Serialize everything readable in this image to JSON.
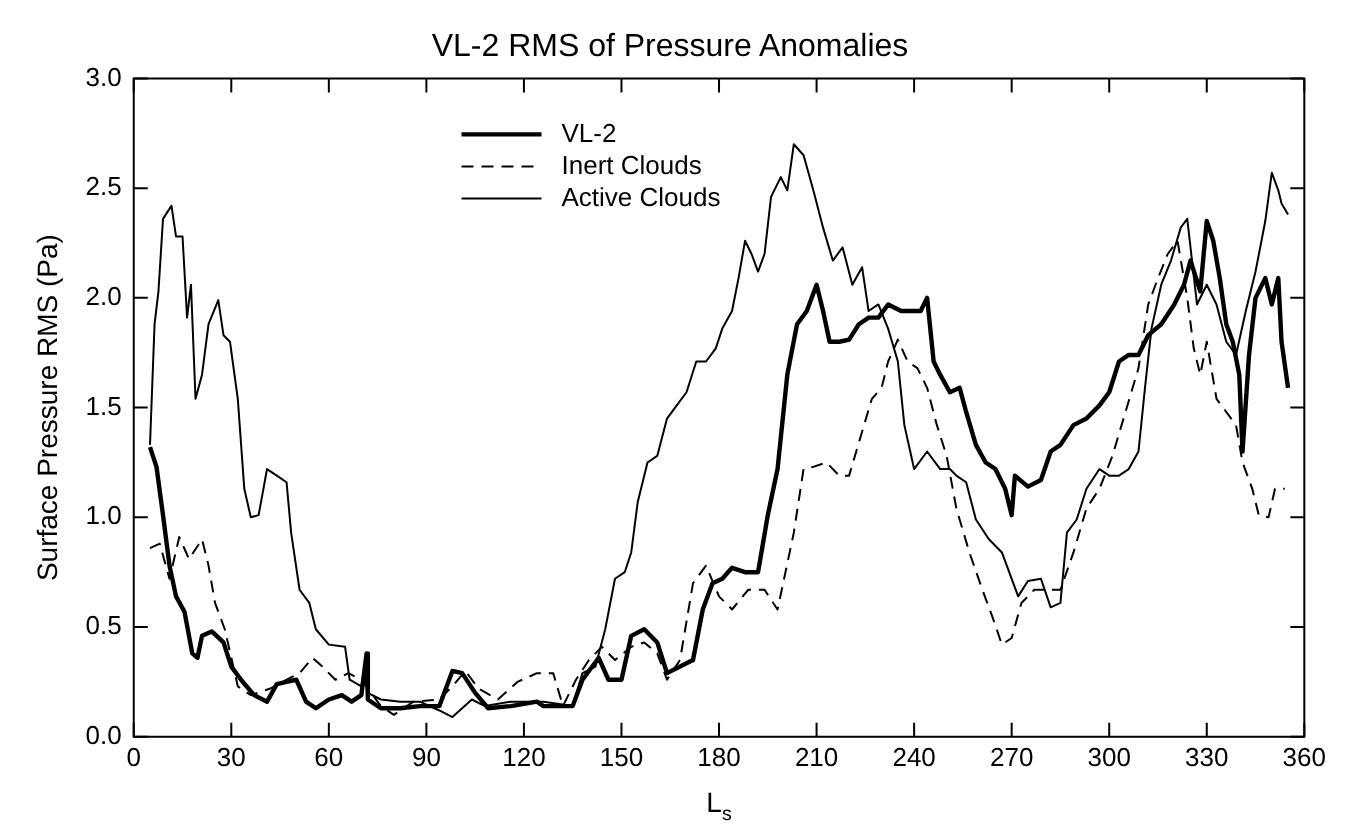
{
  "chart_data": {
    "type": "line",
    "title": "VL-2 RMS of Pressure Anomalies",
    "xlabel": "L$_{s}$",
    "ylabel": "Surface Pressure RMS (Pa)",
    "xlim": [
      0,
      360
    ],
    "xticks": [
      0,
      30,
      60,
      90,
      120,
      150,
      180,
      210,
      240,
      270,
      300,
      330,
      360
    ],
    "ylim": [
      0,
      3
    ],
    "yticks": [
      {
        "value": 0,
        "label": "0.0"
      },
      {
        "value": 0.5,
        "label": "0.5"
      },
      {
        "value": 1,
        "label": "1.0"
      },
      {
        "value": 1.5,
        "label": "1.5"
      },
      {
        "value": 2,
        "label": "2.0"
      },
      {
        "value": 2.5,
        "label": "2.5"
      },
      {
        "value": 3,
        "label": "3.0"
      }
    ],
    "grid": false,
    "legend": "top left",
    "marker": "none",
    "series": [
      {
        "name": "VL-2",
        "color": "#000000",
        "line_style": "solid",
        "x": [
          5,
          7,
          9,
          11,
          13,
          15.6,
          18,
          19.6,
          21,
          24,
          27.6,
          30,
          33,
          37,
          41,
          44,
          47,
          50,
          53,
          56,
          60,
          64,
          67,
          70,
          71.6,
          72,
          76,
          82,
          88,
          94,
          98,
          101,
          105,
          109,
          116,
          124,
          126,
          135,
          138,
          143,
          146,
          150,
          153,
          157,
          161,
          164,
          168,
          172,
          175,
          178,
          181,
          184,
          188,
          192,
          195,
          198,
          201,
          204,
          207,
          210,
          212,
          214,
          217,
          220,
          223,
          226,
          229,
          232,
          236,
          240,
          242,
          244,
          246,
          248,
          251,
          254,
          256,
          259,
          262,
          265,
          268,
          270,
          271,
          275,
          279,
          282,
          285,
          289,
          293,
          297,
          300,
          303,
          306,
          309,
          312,
          316,
          320,
          323,
          325,
          328,
          330,
          332,
          334,
          336,
          338,
          340,
          341,
          343,
          345,
          348,
          350,
          352,
          353,
          355
        ],
        "values": [
          1.32,
          1.23,
          1.01,
          0.78,
          0.64,
          0.57,
          0.38,
          0.36,
          0.46,
          0.48,
          0.43,
          0.32,
          0.26,
          0.19,
          0.16,
          0.24,
          0.25,
          0.26,
          0.16,
          0.13,
          0.17,
          0.19,
          0.16,
          0.19,
          0.38,
          0.17,
          0.13,
          0.13,
          0.14,
          0.14,
          0.3,
          0.29,
          0.2,
          0.13,
          0.14,
          0.16,
          0.14,
          0.14,
          0.26,
          0.36,
          0.26,
          0.26,
          0.46,
          0.49,
          0.43,
          0.29,
          0.32,
          0.35,
          0.58,
          0.7,
          0.72,
          0.77,
          0.75,
          0.75,
          1.01,
          1.22,
          1.65,
          1.88,
          1.94,
          2.06,
          1.94,
          1.8,
          1.8,
          1.81,
          1.88,
          1.91,
          1.91,
          1.97,
          1.94,
          1.94,
          1.94,
          2.0,
          1.71,
          1.65,
          1.57,
          1.59,
          1.48,
          1.33,
          1.25,
          1.22,
          1.13,
          1.01,
          1.19,
          1.14,
          1.17,
          1.3,
          1.33,
          1.42,
          1.45,
          1.51,
          1.57,
          1.71,
          1.74,
          1.74,
          1.83,
          1.88,
          1.97,
          2.06,
          2.17,
          2.03,
          2.35,
          2.26,
          2.09,
          1.88,
          1.8,
          1.65,
          1.3,
          1.74,
          2.0,
          2.09,
          1.97,
          2.09,
          1.8,
          1.59
        ]
      },
      {
        "name": "Inert Clouds",
        "color": "#000000",
        "line_style": "dashed",
        "x": [
          5,
          8,
          11,
          14,
          17,
          21,
          23,
          25,
          28,
          32,
          36,
          42,
          47,
          51,
          55,
          58,
          62,
          66,
          70,
          76,
          80,
          86,
          94,
          98,
          102,
          106,
          112,
          118,
          124,
          126,
          129,
          132,
          136,
          140,
          144,
          148,
          153,
          157,
          161,
          164,
          168,
          172,
          176,
          180,
          184,
          189,
          194,
          198,
          200,
          203,
          206,
          209,
          213,
          217,
          220,
          224,
          227,
          230,
          232,
          235,
          238,
          241,
          244,
          247,
          250,
          253,
          257,
          261,
          264,
          267,
          270,
          273,
          277,
          281,
          285,
          289,
          293,
          297,
          301,
          305,
          309,
          312,
          315,
          318,
          321,
          324,
          326,
          328,
          330,
          333,
          336,
          339,
          341,
          344,
          346,
          349,
          351,
          354
        ],
        "values": [
          0.86,
          0.88,
          0.72,
          0.91,
          0.81,
          0.9,
          0.78,
          0.61,
          0.49,
          0.23,
          0.19,
          0.22,
          0.26,
          0.29,
          0.36,
          0.32,
          0.26,
          0.29,
          0.26,
          0.14,
          0.1,
          0.16,
          0.17,
          0.23,
          0.3,
          0.22,
          0.17,
          0.25,
          0.29,
          0.29,
          0.29,
          0.14,
          0.26,
          0.35,
          0.41,
          0.35,
          0.41,
          0.43,
          0.38,
          0.26,
          0.35,
          0.7,
          0.78,
          0.64,
          0.58,
          0.67,
          0.67,
          0.58,
          0.72,
          0.93,
          1.22,
          1.23,
          1.25,
          1.19,
          1.19,
          1.39,
          1.54,
          1.59,
          1.71,
          1.81,
          1.71,
          1.68,
          1.59,
          1.42,
          1.28,
          1.04,
          0.84,
          0.67,
          0.55,
          0.42,
          0.45,
          0.61,
          0.67,
          0.67,
          0.67,
          0.84,
          1.04,
          1.13,
          1.28,
          1.48,
          1.68,
          1.97,
          2.09,
          2.2,
          2.26,
          2.0,
          1.77,
          1.65,
          1.8,
          1.54,
          1.48,
          1.42,
          1.25,
          1.13,
          1.01,
          1.0,
          1.13,
          1.13
        ]
      },
      {
        "name": "Active Clouds",
        "color": "#000000",
        "line_style": "solid",
        "x": [
          5,
          6.4,
          7.6,
          9,
          11.6,
          13,
          15,
          16.4,
          17.6,
          19,
          21,
          23,
          26,
          27.6,
          29.6,
          32,
          34,
          36,
          38.4,
          41,
          44,
          47,
          48.4,
          51,
          54,
          56,
          60,
          65,
          66.4,
          70,
          71.6,
          72,
          76,
          82,
          88,
          94,
          98,
          104,
          108,
          116,
          124,
          126,
          135,
          138,
          142,
          145,
          148,
          151,
          153,
          155,
          158,
          161,
          164,
          167,
          170,
          173,
          176,
          179,
          181,
          184,
          186,
          188,
          190,
          192,
          194,
          196,
          199,
          201,
          203,
          206,
          209,
          212,
          215,
          218,
          221,
          224,
          226,
          229,
          232,
          235,
          237,
          240,
          244,
          248,
          251,
          253,
          256,
          259,
          263,
          267,
          270,
          272,
          275,
          279,
          282,
          285,
          287,
          290,
          293,
          297,
          300,
          303,
          306,
          309,
          311,
          313,
          316,
          319,
          322,
          324,
          327,
          330,
          333,
          336,
          339,
          342,
          345,
          348,
          350,
          352,
          353,
          355
        ],
        "values": [
          1.33,
          1.88,
          2.03,
          2.36,
          2.42,
          2.28,
          2.28,
          1.91,
          2.06,
          1.54,
          1.65,
          1.88,
          1.99,
          1.83,
          1.8,
          1.54,
          1.13,
          1.0,
          1.01,
          1.22,
          1.19,
          1.16,
          0.93,
          0.67,
          0.61,
          0.49,
          0.42,
          0.41,
          0.26,
          0.23,
          0.38,
          0.2,
          0.17,
          0.16,
          0.16,
          0.12,
          0.09,
          0.17,
          0.14,
          0.16,
          0.16,
          0.16,
          0.14,
          0.29,
          0.32,
          0.49,
          0.72,
          0.75,
          0.84,
          1.07,
          1.25,
          1.28,
          1.45,
          1.51,
          1.57,
          1.71,
          1.71,
          1.77,
          1.86,
          1.94,
          2.09,
          2.26,
          2.2,
          2.12,
          2.2,
          2.46,
          2.55,
          2.49,
          2.7,
          2.65,
          2.49,
          2.32,
          2.17,
          2.23,
          2.06,
          2.14,
          1.94,
          1.97,
          1.86,
          1.71,
          1.42,
          1.22,
          1.3,
          1.22,
          1.22,
          1.19,
          1.16,
          0.99,
          0.9,
          0.84,
          0.72,
          0.64,
          0.71,
          0.72,
          0.59,
          0.61,
          0.93,
          0.99,
          1.13,
          1.22,
          1.19,
          1.19,
          1.22,
          1.3,
          1.59,
          1.86,
          2.06,
          2.17,
          2.32,
          2.36,
          1.97,
          2.06,
          1.97,
          1.8,
          1.74,
          1.94,
          2.12,
          2.35,
          2.57,
          2.49,
          2.43,
          2.38
        ]
      }
    ]
  }
}
